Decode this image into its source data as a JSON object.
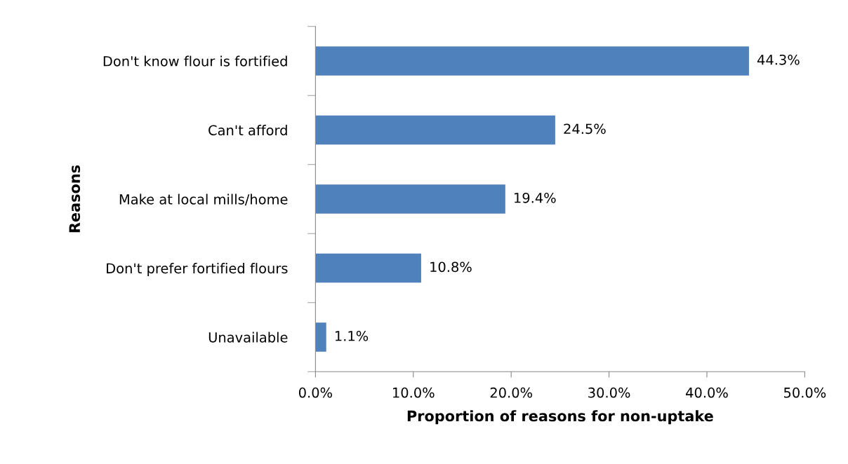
{
  "chart_data": {
    "type": "bar",
    "orientation": "horizontal",
    "xlabel": "Proportion of reasons for non-uptake",
    "ylabel": "Reasons",
    "categories": [
      "Don't know flour is fortified",
      "Can't afford",
      "Make at local mills/home",
      "Don't prefer fortified flours",
      "Unavailable"
    ],
    "values": [
      44.3,
      24.5,
      19.4,
      10.8,
      1.1
    ],
    "value_labels": [
      "44.3%",
      "24.5%",
      "19.4%",
      "10.8%",
      "1.1%"
    ],
    "color": "#4f81bd",
    "xlim": [
      0,
      50
    ],
    "xticks": [
      {
        "value": 0,
        "label": "0.0%"
      },
      {
        "value": 10,
        "label": "10.0%"
      },
      {
        "value": 20,
        "label": "20.0%"
      },
      {
        "value": 30,
        "label": "30.0%"
      },
      {
        "value": 40,
        "label": "40.0%"
      },
      {
        "value": 50,
        "label": "50.0%"
      }
    ],
    "grid": false,
    "legend": false
  }
}
